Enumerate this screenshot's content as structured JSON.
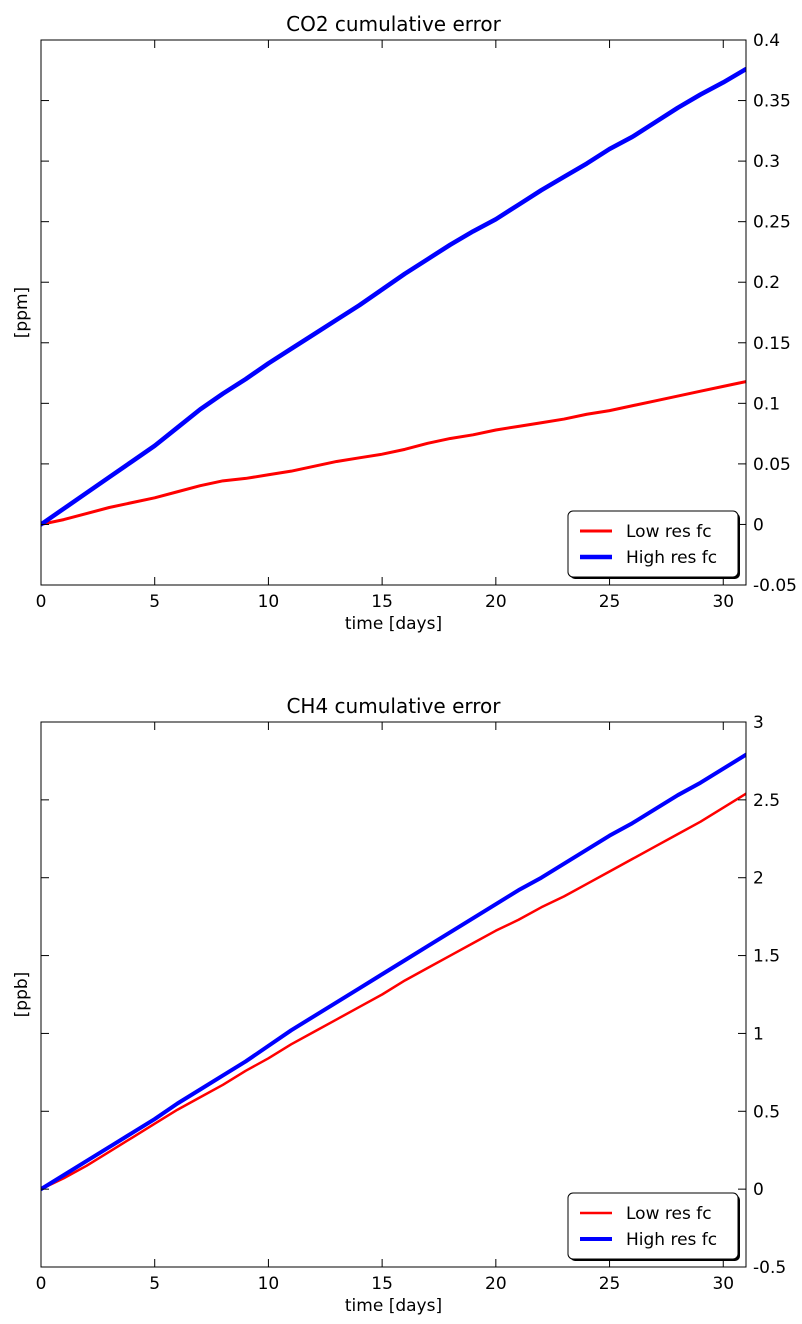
{
  "chart_data": [
    {
      "type": "line",
      "title": "CO2 cumulative error",
      "xlabel": "time [days]",
      "ylabel": "[ppm]",
      "xlim": [
        0,
        31
      ],
      "ylim": [
        -0.05,
        0.4
      ],
      "xticks": [
        0,
        5,
        10,
        15,
        20,
        25,
        30
      ],
      "xtick_labels": [
        "0",
        "5",
        "10",
        "15",
        "20",
        "25",
        "30"
      ],
      "yticks": [
        -0.05,
        0,
        0.05,
        0.1,
        0.15,
        0.2,
        0.25,
        0.3,
        0.35,
        0.4
      ],
      "ytick_labels": [
        "-0.05",
        "0",
        "0.05",
        "0.1",
        "0.15",
        "0.2",
        "0.25",
        "0.3",
        "0.35",
        "0.4"
      ],
      "y_axis_side": "right",
      "grid": false,
      "legend_position": "lower-right",
      "series": [
        {
          "name": "Low res fc",
          "color": "#ff0000",
          "x": [
            0,
            1,
            2,
            3,
            4,
            5,
            6,
            7,
            8,
            9,
            10,
            11,
            12,
            13,
            14,
            15,
            16,
            17,
            18,
            19,
            20,
            21,
            22,
            23,
            24,
            25,
            26,
            27,
            28,
            29,
            30,
            31
          ],
          "y": [
            0.0,
            0.004,
            0.009,
            0.014,
            0.018,
            0.022,
            0.027,
            0.032,
            0.036,
            0.038,
            0.041,
            0.044,
            0.048,
            0.052,
            0.055,
            0.058,
            0.062,
            0.067,
            0.071,
            0.074,
            0.078,
            0.081,
            0.084,
            0.087,
            0.091,
            0.094,
            0.098,
            0.102,
            0.106,
            0.11,
            0.114,
            0.118
          ]
        },
        {
          "name": "High res fc",
          "color": "#0000ff",
          "x": [
            0,
            1,
            2,
            3,
            4,
            5,
            6,
            7,
            8,
            9,
            10,
            11,
            12,
            13,
            14,
            15,
            16,
            17,
            18,
            19,
            20,
            21,
            22,
            23,
            24,
            25,
            26,
            27,
            28,
            29,
            30,
            31
          ],
          "y": [
            0.0,
            0.013,
            0.026,
            0.039,
            0.052,
            0.065,
            0.08,
            0.095,
            0.108,
            0.12,
            0.133,
            0.145,
            0.157,
            0.169,
            0.181,
            0.194,
            0.207,
            0.219,
            0.231,
            0.242,
            0.252,
            0.264,
            0.276,
            0.287,
            0.298,
            0.31,
            0.32,
            0.332,
            0.344,
            0.355,
            0.365,
            0.376
          ]
        }
      ]
    },
    {
      "type": "line",
      "title": "CH4 cumulative error",
      "xlabel": "time [days]",
      "ylabel": "[ppb]",
      "xlim": [
        0,
        31
      ],
      "ylim": [
        -0.5,
        3
      ],
      "xticks": [
        0,
        5,
        10,
        15,
        20,
        25,
        30
      ],
      "xtick_labels": [
        "0",
        "5",
        "10",
        "15",
        "20",
        "25",
        "30"
      ],
      "yticks": [
        -0.5,
        0,
        0.5,
        1,
        1.5,
        2,
        2.5,
        3
      ],
      "ytick_labels": [
        "-0.5",
        "0",
        "0.5",
        "1",
        "1.5",
        "2",
        "2.5",
        "3"
      ],
      "y_axis_side": "right",
      "grid": false,
      "legend_position": "lower-right",
      "series": [
        {
          "name": "Low res fc",
          "color": "#ff0000",
          "x": [
            0,
            1,
            2,
            3,
            4,
            5,
            6,
            7,
            8,
            9,
            10,
            11,
            12,
            13,
            14,
            15,
            16,
            17,
            18,
            19,
            20,
            21,
            22,
            23,
            24,
            25,
            26,
            27,
            28,
            29,
            30,
            31
          ],
          "y": [
            0.0,
            0.07,
            0.15,
            0.24,
            0.33,
            0.42,
            0.51,
            0.59,
            0.67,
            0.76,
            0.84,
            0.93,
            1.01,
            1.09,
            1.17,
            1.25,
            1.34,
            1.42,
            1.5,
            1.58,
            1.66,
            1.73,
            1.81,
            1.88,
            1.96,
            2.04,
            2.12,
            2.2,
            2.28,
            2.36,
            2.45,
            2.54
          ]
        },
        {
          "name": "High res fc",
          "color": "#0000ff",
          "x": [
            0,
            1,
            2,
            3,
            4,
            5,
            6,
            7,
            8,
            9,
            10,
            11,
            12,
            13,
            14,
            15,
            16,
            17,
            18,
            19,
            20,
            21,
            22,
            23,
            24,
            25,
            26,
            27,
            28,
            29,
            30,
            31
          ],
          "y": [
            0.0,
            0.09,
            0.18,
            0.27,
            0.36,
            0.45,
            0.55,
            0.64,
            0.73,
            0.82,
            0.92,
            1.02,
            1.11,
            1.2,
            1.29,
            1.38,
            1.47,
            1.56,
            1.65,
            1.74,
            1.83,
            1.92,
            2.0,
            2.09,
            2.18,
            2.27,
            2.35,
            2.44,
            2.53,
            2.61,
            2.7,
            2.79
          ]
        }
      ]
    }
  ]
}
